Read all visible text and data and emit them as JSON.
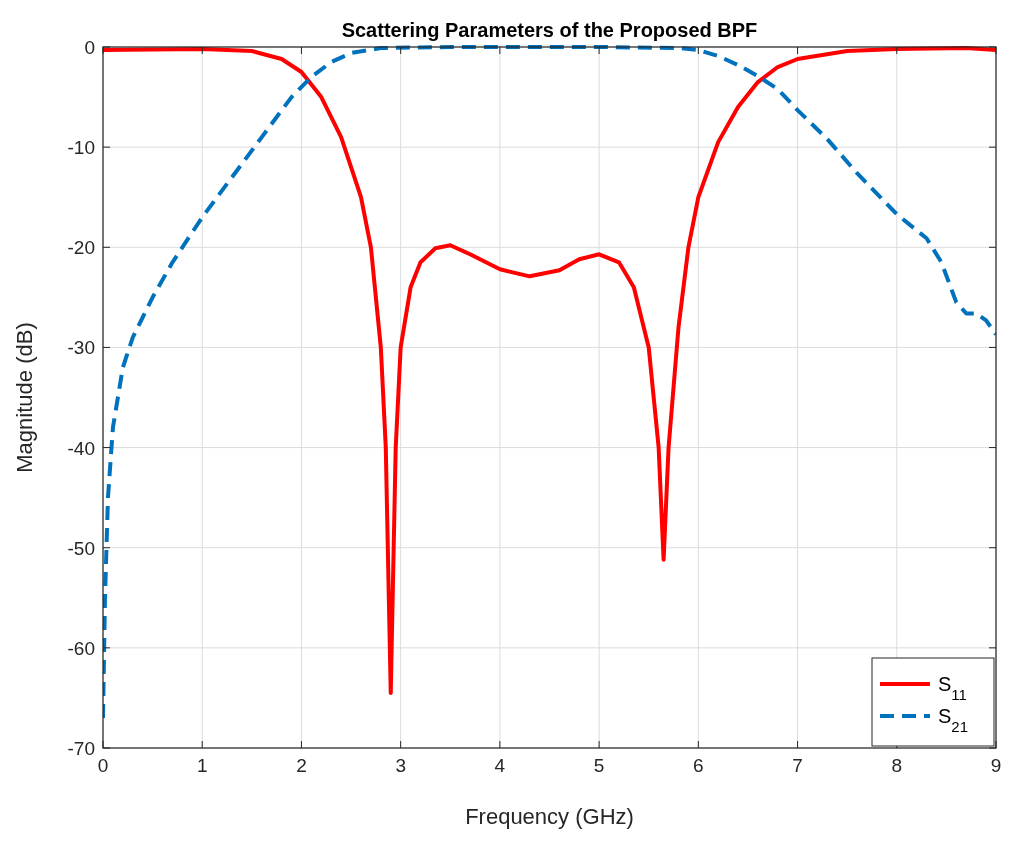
{
  "chart_data": {
    "type": "line",
    "title": "Scattering Parameters of the Proposed BPF",
    "xlabel": "Frequency (GHz)",
    "ylabel": "Magnitude (dB)",
    "xlim": [
      0,
      9
    ],
    "xticks": [
      0,
      1,
      2,
      3,
      4,
      5,
      6,
      7,
      8,
      9
    ],
    "ylim": [
      -70,
      0
    ],
    "yticks": [
      -70,
      -60,
      -50,
      -40,
      -30,
      -20,
      -10,
      0
    ],
    "grid": true,
    "legend": "bottom right",
    "series": [
      {
        "name": "S$_{11}$",
        "color": "#ff0000",
        "line_style": "solid",
        "x": [
          0,
          1,
          1.5,
          1.8,
          2.0,
          2.2,
          2.4,
          2.6,
          2.7,
          2.8,
          2.85,
          2.9,
          2.95,
          3.0,
          3.1,
          3.2,
          3.35,
          3.5,
          3.7,
          4.0,
          4.3,
          4.6,
          4.8,
          5.0,
          5.2,
          5.35,
          5.5,
          5.6,
          5.65,
          5.7,
          5.8,
          5.9,
          6.0,
          6.2,
          6.4,
          6.6,
          6.8,
          7.0,
          7.5,
          8,
          8.7,
          9
        ],
        "values": [
          -0.3,
          -0.2,
          -0.4,
          -1.2,
          -2.5,
          -5,
          -9,
          -15,
          -20,
          -30,
          -40,
          -64.5,
          -40,
          -30,
          -24,
          -21.5,
          -20.1,
          -19.8,
          -20.7,
          -22.2,
          -22.9,
          -22.3,
          -21.2,
          -20.7,
          -21.5,
          -24,
          -30,
          -40,
          -51.2,
          -40,
          -28,
          -20,
          -15,
          -9.5,
          -6,
          -3.5,
          -2,
          -1.2,
          -0.4,
          -0.2,
          -0.1,
          -0.3
        ]
      },
      {
        "name": "S$_{21}$",
        "color": "#0072bd",
        "line_style": "dashed",
        "x": [
          0,
          0.02,
          0.05,
          0.1,
          0.2,
          0.3,
          0.5,
          0.7,
          1,
          1.3,
          1.6,
          1.9,
          2.1,
          2.3,
          2.5,
          2.8,
          3.5,
          5,
          5.8,
          6.0,
          6.2,
          6.4,
          6.6,
          6.8,
          7.0,
          7.3,
          7.6,
          8.0,
          8.3,
          8.45,
          8.6,
          8.7,
          8.8,
          8.9,
          9
        ],
        "values": [
          -67,
          -55,
          -45,
          -38,
          -32,
          -29,
          -25,
          -21.5,
          -17,
          -13,
          -9,
          -5,
          -3,
          -1.5,
          -0.6,
          -0.1,
          0,
          0,
          -0.1,
          -0.3,
          -0.9,
          -1.8,
          -2.9,
          -4.2,
          -6.3,
          -9.2,
          -12.6,
          -16.7,
          -19.1,
          -21.5,
          -25.5,
          -26.6,
          -26.6,
          -27.3,
          -28.7
        ]
      }
    ]
  }
}
